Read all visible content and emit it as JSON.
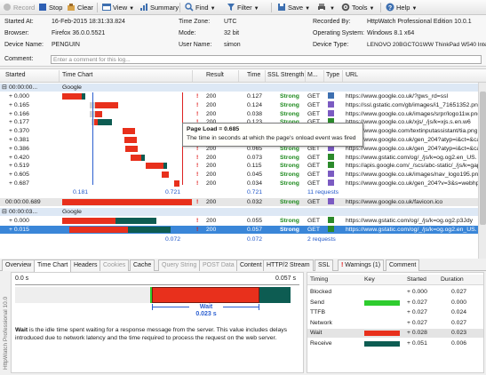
{
  "toolbar": {
    "record": "Record",
    "stop": "Stop",
    "clear": "Clear",
    "view": "View",
    "summary": "Summary",
    "find": "Find",
    "filter": "Filter",
    "save": "Save",
    "tools": "Tools",
    "help": "Help"
  },
  "info": {
    "started_at_label": "Started At:",
    "started_at": "16-Feb-2015 18:31:33.824",
    "browser_label": "Browser:",
    "browser": "Firefox 36.0.0.5521",
    "device_name_label": "Device Name:",
    "device_name": "PENGUIN",
    "time_zone_label": "Time Zone:",
    "time_zone": "UTC",
    "mode_label": "Mode:",
    "mode": "32 bit",
    "user_name_label": "User Name:",
    "user_name": "simon",
    "recorded_by_label": "Recorded By:",
    "recorded_by": "HttpWatch Professional Edition 10.0.1",
    "os_label": "Operating System:",
    "os": "Windows 8.1 x64",
    "device_type_label": "Device Type:",
    "device_type": "LENOVO 20BGCTO1WW ThinkPad W540 Intel",
    "comment_label": "Comment:",
    "comment_placeholder": "Enter a comment for this log..."
  },
  "grid": {
    "headers": {
      "started": "Started",
      "time_chart": "Time Chart",
      "result": "Result",
      "time": "Time",
      "ssl": "SSL Strength",
      "method": "M...",
      "type": "Type",
      "url": "URL"
    },
    "page1": {
      "started": "00:00:00...",
      "title": "Google"
    },
    "rows1": [
      {
        "started": "+ 0.000",
        "result": "200",
        "time": "0.127",
        "ssl": "Strong",
        "method": "GET",
        "url": "https://www.google.co.uk/?gws_rd=ssl"
      },
      {
        "started": "+ 0.165",
        "result": "200",
        "time": "0.124",
        "ssl": "Strong",
        "method": "GET",
        "url": "https://ssl.gstatic.com/gb/images/i1_71651352.png"
      },
      {
        "started": "+ 0.166",
        "result": "200",
        "time": "0.038",
        "ssl": "Strong",
        "method": "GET",
        "url": "https://www.google.co.uk/images/srpr/logo11w.png"
      },
      {
        "started": "+ 0.177",
        "result": "200",
        "time": "0.123",
        "ssl": "Strong",
        "method": "GET",
        "url": "https://www.google.co.uk/xjs/_/js/k=xjs.s.en.w6"
      },
      {
        "started": "+ 0.370",
        "result": "200",
        "time": "0.065",
        "ssl": "Strong",
        "method": "GET",
        "url": "https://www.google.com/textinputassistant/tia.png"
      },
      {
        "started": "+ 0.381",
        "result": "200",
        "time": "0.065",
        "ssl": "Strong",
        "method": "GET",
        "url": "https://www.google.co.uk/gen_204?atyp=i&ct=&ca"
      },
      {
        "started": "+ 0.386",
        "result": "200",
        "time": "0.065",
        "ssl": "Strong",
        "method": "GET",
        "url": "https://www.google.co.uk/gen_204?atyp=i&ct=&ca"
      },
      {
        "started": "+ 0.420",
        "result": "200",
        "time": "0.073",
        "ssl": "Strong",
        "method": "GET",
        "url": "https://www.gstatic.com/og/_/js/k=og.og2.en_US."
      },
      {
        "started": "+ 0.519",
        "result": "200",
        "time": "0.115",
        "ssl": "Strong",
        "method": "GET",
        "url": "https://apis.google.com/_/scs/abc-static/_/js/k=gap"
      },
      {
        "started": "+ 0.605",
        "result": "200",
        "time": "0.045",
        "ssl": "Strong",
        "method": "GET",
        "url": "https://www.google.co.uk/images/nav_logo195.png"
      },
      {
        "started": "+ 0.687",
        "result": "200",
        "time": "0.034",
        "ssl": "Strong",
        "method": "GET",
        "url": "https://www.google.co.uk/gen_204?v=3&s=webhp"
      }
    ],
    "summary1": {
      "left": "0.181",
      "right": "0.721",
      "time": "0.721",
      "requests": "11 requests"
    },
    "mid_row": {
      "started": "00:00:00.689",
      "result": "200",
      "time": "0.032",
      "ssl": "Strong",
      "method": "GET",
      "url": "https://www.google.co.uk/favicon.ico"
    },
    "page2": {
      "started": "00:00:03...",
      "title": "Google"
    },
    "rows2": [
      {
        "started": "+ 0.000",
        "result": "200",
        "time": "0.055",
        "ssl": "Strong",
        "method": "GET",
        "url": "https://www.gstatic.com/og/_/js/k=og.og2.p3Jdy"
      },
      {
        "started": "+ 0.015",
        "result": "200",
        "time": "0.057",
        "ssl": "Strong",
        "method": "GET",
        "url": "https://www.gstatic.com/og/_/js/k=og.og2.en_US."
      }
    ],
    "summary2": {
      "right": "0.072",
      "time": "0.072",
      "requests": "2 requests"
    }
  },
  "tooltip": {
    "title": "Page Load = 0.685",
    "text": "The time in seconds at which the page's onload event was fired"
  },
  "tabs": [
    "Overview",
    "Time Chart",
    "Headers",
    "Cookies",
    "Cache",
    "Query String",
    "POST Data",
    "Content",
    "HTTP/2 Stream",
    "SSL",
    "! Warnings (1)",
    "Comment"
  ],
  "detail": {
    "axis_start": "0.0 s",
    "axis_end": "0.057 s",
    "wait_label": "Wait",
    "wait_value": "0.023 s",
    "desc_bold": "Wait",
    "desc": " is the idle time spent waiting for a response message from the server. This value includes delays introduced due to network latency and the time required to process the request on the web server.",
    "side_label": "HttpWatch Professional 10.0"
  },
  "timing": {
    "headers": {
      "timing": "Timing",
      "key": "Key",
      "started": "Started",
      "duration": "Duration"
    },
    "rows": [
      {
        "name": "Blocked",
        "started": "+ 0.000",
        "duration": "0.027",
        "color": ""
      },
      {
        "name": "Send",
        "started": "+ 0.027",
        "duration": "0.000",
        "color": "#2ecc2e"
      },
      {
        "name": "TTFB",
        "started": "+ 0.027",
        "duration": "0.024",
        "color": ""
      },
      {
        "name": "Network",
        "started": "+ 0.027",
        "duration": "0.027",
        "color": ""
      },
      {
        "name": "Wait",
        "started": "+ 0.028",
        "duration": "0.023",
        "color": "#e8301c"
      },
      {
        "name": "Receive",
        "started": "+ 0.051",
        "duration": "0.006",
        "color": "#0d5c52"
      }
    ]
  },
  "colors": {
    "wait": "#e8301c",
    "receive": "#0d5c52",
    "send": "#2ecc2e",
    "blocked": "#c9c9c9",
    "selection": "#3a86d8"
  }
}
